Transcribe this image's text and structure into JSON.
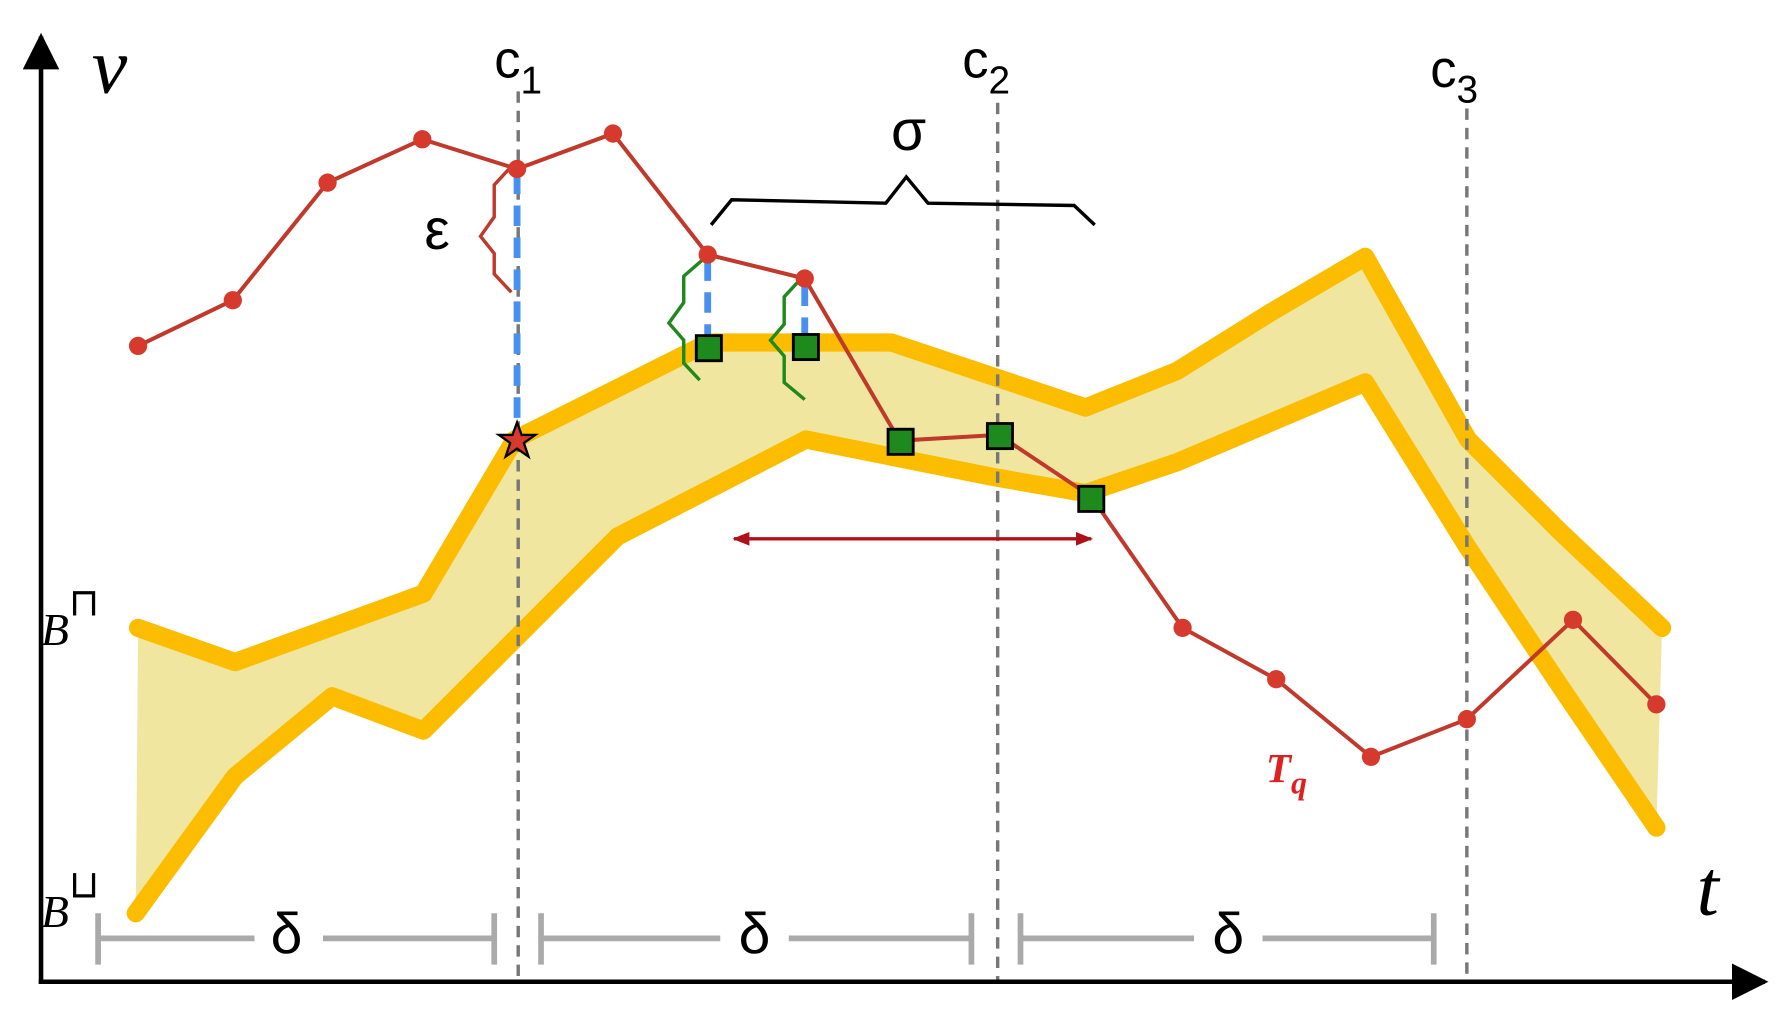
{
  "axes": {
    "y_label": "v",
    "x_label": "t"
  },
  "cuts": [
    {
      "base": "c",
      "sub": "1"
    },
    {
      "base": "c",
      "sub": "2"
    },
    {
      "base": "c",
      "sub": "3"
    }
  ],
  "sigma": "σ",
  "epsilon": "ε",
  "deltas": [
    "δ",
    "δ",
    "δ"
  ],
  "bounds": {
    "upper": {
      "base": "B",
      "sup": "⊓"
    },
    "lower": {
      "base": "B",
      "sup": "⊔"
    }
  },
  "query_label": {
    "base": "T",
    "sub": "q"
  }
}
